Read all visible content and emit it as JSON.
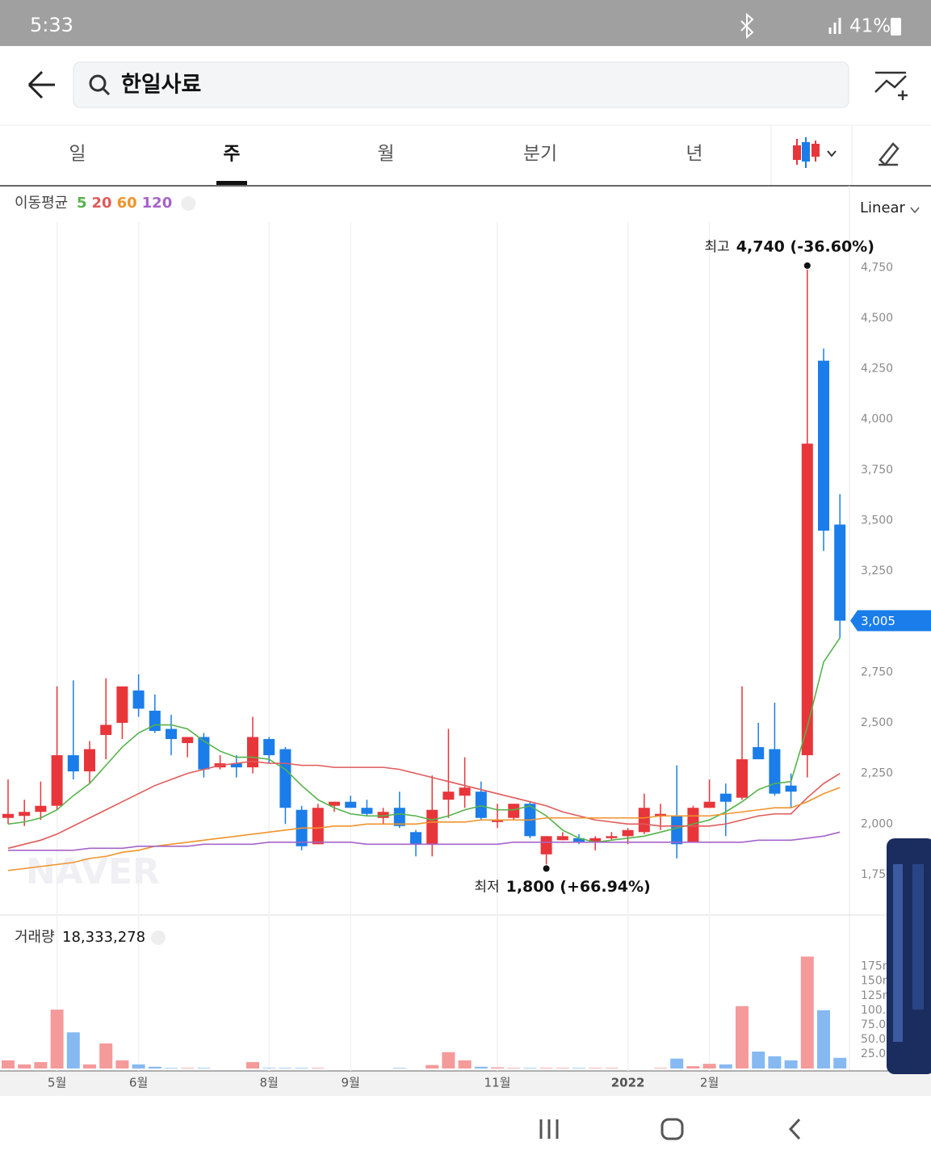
{
  "status_bar": {
    "time": "5:33",
    "battery": "41%"
  },
  "search": {
    "query": "한일사료"
  },
  "tabs": [
    "일",
    "주",
    "월",
    "분기",
    "년"
  ],
  "active_tab": "주",
  "scale_selector": "Linear",
  "watermark": "NAVER",
  "chart_data": [
    {
      "type": "candlestick",
      "legend_title": "이동평균",
      "up_color": "#e8353a",
      "down_color": "#1a7de9",
      "open": [
        2030,
        2040,
        2060,
        2090,
        2340,
        2260,
        2440,
        2500,
        2660,
        2560,
        2470,
        2400,
        2430,
        2280,
        2300,
        2280,
        2420,
        2370,
        2070,
        1900,
        2090,
        2110,
        2080,
        2030,
        2080,
        1960,
        1900,
        2120,
        2140,
        2160,
        2010,
        2030,
        2100,
        1850,
        1920,
        1930,
        1910,
        1930,
        1940,
        1960,
        2040,
        2040,
        1910,
        2080,
        2150,
        2130,
        2380,
        2370,
        2190,
        2340,
        4290,
        3480
      ],
      "high": [
        2220,
        2120,
        2210,
        2680,
        2710,
        2410,
        2720,
        2680,
        2740,
        2640,
        2540,
        2430,
        2450,
        2340,
        2340,
        2530,
        2430,
        2380,
        2090,
        2100,
        2110,
        2140,
        2120,
        2080,
        2160,
        1970,
        2240,
        2470,
        2330,
        2210,
        2100,
        2100,
        2110,
        1940,
        1960,
        1950,
        1940,
        1960,
        1980,
        2150,
        2100,
        2290,
        2090,
        2220,
        2200,
        2680,
        2500,
        2600,
        2250,
        4740,
        4350,
        3630
      ],
      "low": [
        2000,
        1990,
        2020,
        2070,
        2220,
        2200,
        2320,
        2420,
        2530,
        2450,
        2340,
        2330,
        2230,
        2270,
        2230,
        2250,
        2300,
        2000,
        1870,
        1900,
        2060,
        2080,
        2040,
        2000,
        1980,
        1840,
        1840,
        2030,
        2080,
        2020,
        1980,
        2020,
        1930,
        1800,
        1920,
        1900,
        1870,
        1920,
        1900,
        1950,
        1970,
        1830,
        1910,
        2080,
        1940,
        2120,
        2330,
        2140,
        2080,
        2230,
        3350,
        2920
      ],
      "close": [
        2050,
        2060,
        2090,
        2340,
        2260,
        2370,
        2490,
        2680,
        2570,
        2460,
        2420,
        2430,
        2270,
        2300,
        2280,
        2430,
        2340,
        2080,
        1890,
        2080,
        2110,
        2080,
        2050,
        2060,
        1990,
        1900,
        2070,
        2160,
        2180,
        2030,
        2020,
        2100,
        1940,
        1940,
        1940,
        1910,
        1930,
        1940,
        1970,
        2080,
        2050,
        1900,
        2080,
        2110,
        2110,
        2320,
        2320,
        2150,
        2160,
        3880,
        3450,
        3005
      ],
      "series": [
        {
          "name": "5",
          "color": "#55b34a",
          "values": [
            2000,
            2010,
            2030,
            2070,
            2140,
            2200,
            2290,
            2380,
            2450,
            2490,
            2490,
            2470,
            2410,
            2360,
            2330,
            2330,
            2320,
            2270,
            2190,
            2120,
            2080,
            2050,
            2040,
            2040,
            2050,
            2040,
            2020,
            2040,
            2070,
            2090,
            2070,
            2070,
            2090,
            2040,
            1970,
            1930,
            1910,
            1920,
            1930,
            1940,
            1960,
            1980,
            2000,
            2020,
            2060,
            2110,
            2170,
            2200,
            2210,
            2480,
            2800,
            2920
          ]
        },
        {
          "name": "20",
          "color": "#e05a5a",
          "values": [
            1880,
            1900,
            1920,
            1950,
            1990,
            2030,
            2070,
            2110,
            2150,
            2190,
            2220,
            2250,
            2270,
            2290,
            2300,
            2310,
            2300,
            2300,
            2290,
            2290,
            2280,
            2280,
            2280,
            2280,
            2270,
            2250,
            2230,
            2210,
            2190,
            2170,
            2150,
            2130,
            2110,
            2090,
            2060,
            2040,
            2020,
            2010,
            2000,
            2000,
            1990,
            1990,
            1990,
            1990,
            2000,
            2020,
            2040,
            2050,
            2050,
            2130,
            2200,
            2250
          ]
        },
        {
          "name": "60",
          "color": "#f0932b",
          "values": [
            1770,
            1780,
            1790,
            1800,
            1810,
            1830,
            1840,
            1860,
            1870,
            1890,
            1900,
            1910,
            1920,
            1930,
            1940,
            1950,
            1960,
            1970,
            1980,
            1980,
            1990,
            1990,
            2000,
            2000,
            2000,
            2000,
            2010,
            2010,
            2010,
            2020,
            2020,
            2020,
            2020,
            2030,
            2030,
            2030,
            2030,
            2030,
            2030,
            2030,
            2040,
            2040,
            2040,
            2040,
            2050,
            2060,
            2070,
            2080,
            2080,
            2110,
            2150,
            2180
          ]
        },
        {
          "name": "120",
          "color": "#a564c9",
          "values": [
            1870,
            1870,
            1870,
            1870,
            1870,
            1880,
            1880,
            1880,
            1890,
            1890,
            1890,
            1890,
            1900,
            1900,
            1900,
            1900,
            1910,
            1910,
            1910,
            1910,
            1910,
            1910,
            1900,
            1900,
            1900,
            1900,
            1900,
            1900,
            1900,
            1900,
            1900,
            1910,
            1910,
            1910,
            1910,
            1910,
            1910,
            1910,
            1910,
            1910,
            1910,
            1910,
            1910,
            1910,
            1910,
            1910,
            1920,
            1920,
            1920,
            1930,
            1940,
            1960
          ]
        }
      ],
      "ylim": [
        1550,
        4975
      ],
      "yticks": [
        {
          "value": 1750,
          "label": "1,750"
        },
        {
          "value": 2000,
          "label": "2,000"
        },
        {
          "value": 2250,
          "label": "2,250"
        },
        {
          "value": 2500,
          "label": "2,500"
        },
        {
          "value": 2750,
          "label": "2,750"
        },
        {
          "value": 3000,
          "label": "3,000"
        },
        {
          "value": 3250,
          "label": "3,250"
        },
        {
          "value": 3500,
          "label": "3,500"
        },
        {
          "value": 3750,
          "label": "3,750"
        },
        {
          "value": 4000,
          "label": "4,000"
        },
        {
          "value": 4250,
          "label": "4,250"
        },
        {
          "value": 4500,
          "label": "4,500"
        },
        {
          "value": 4750,
          "label": "4,750"
        }
      ],
      "high_annotation": {
        "label": "최고",
        "value": "4,740 (-36.60%)"
      },
      "low_annotation": {
        "label": "최저",
        "value": "1,800 (+66.94%)"
      },
      "current_price_label": "3,005"
    },
    {
      "type": "bar",
      "title": "거래량",
      "total_label": "18,333,278",
      "up_color": "#f59a9a",
      "down_color": "#86b9f2",
      "categories": [
        null,
        null,
        null,
        "5월",
        null,
        null,
        null,
        null,
        "6월",
        null,
        null,
        null,
        null,
        null,
        null,
        null,
        "8월",
        null,
        null,
        null,
        null,
        "9월",
        null,
        null,
        null,
        null,
        null,
        null,
        null,
        null,
        "11월",
        null,
        null,
        null,
        null,
        null,
        null,
        null,
        "2022",
        null,
        null,
        null,
        null,
        "2월",
        null,
        null,
        null,
        null,
        null,
        null,
        null,
        null
      ],
      "values": [
        14,
        7,
        11,
        101,
        62,
        7,
        43,
        14,
        7,
        3,
        1,
        1,
        1,
        0,
        0,
        11,
        1,
        1,
        1,
        1,
        0,
        0,
        0,
        0,
        1,
        0,
        6,
        28,
        14,
        3,
        2,
        1,
        1,
        1,
        1,
        1,
        1,
        1,
        0,
        0,
        1,
        17,
        4,
        8,
        7,
        107,
        29,
        21,
        14,
        192,
        100,
        18.3
      ],
      "ylim": [
        0,
        205
      ],
      "yticks": [
        {
          "value": 25,
          "label": "25.0m"
        },
        {
          "value": 50,
          "label": "50.0m"
        },
        {
          "value": 75,
          "label": "75.0m"
        },
        {
          "value": 100,
          "label": "100.0m"
        },
        {
          "value": 125,
          "label": "125m"
        },
        {
          "value": 150,
          "label": "150m"
        },
        {
          "value": 175,
          "label": "175m"
        }
      ]
    }
  ]
}
